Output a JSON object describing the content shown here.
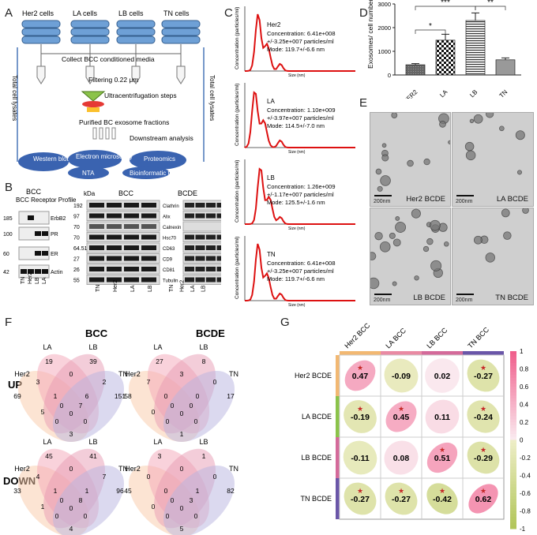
{
  "panels": {
    "A": "A",
    "B": "B",
    "C": "C",
    "D": "D",
    "E": "E",
    "F": "F",
    "G": "G"
  },
  "panelA": {
    "cells": [
      "Her2 cells",
      "LA cells",
      "LB cells",
      "TN cells"
    ],
    "collect": "Collect  BCC conditioned media",
    "filter": "Filtering 0.22 μm",
    "ultra": "Ultracentrifugation steps",
    "purified": "Purified BC exosome fractions",
    "downstream": "Downstream analysis",
    "lysates_left": "Total cell lysates",
    "lysates_right": "Total cell lysates",
    "methods": [
      "Western blot",
      "Electron microscopy",
      "NTA",
      "Proteomics",
      "Bioinformatic tools"
    ]
  },
  "panelB": {
    "receptor_title": "BCC Receptor Profile",
    "bcc": "BCC",
    "bcde": "BCDE",
    "kda": "kDa",
    "left_kda": [
      "185",
      "100",
      "60",
      "42"
    ],
    "left_labels": [
      "ErbB2",
      "PR",
      "ER",
      "Actin"
    ],
    "mid_kda": [
      "192",
      "97",
      "70",
      "70",
      "64.51",
      "27",
      "26",
      "55"
    ],
    "right_labels": [
      "Clathrin",
      "Alix",
      "Calnexin",
      "Hsc70",
      "CD63",
      "CD9",
      "CD81",
      "Tubulin"
    ],
    "lanes_left": [
      "TN",
      "Her2",
      "LB",
      "LA"
    ],
    "lanes_mid": [
      "TN",
      "Her2",
      "LA",
      "LB"
    ],
    "lanes_right": [
      "TN",
      "Her2",
      "LA",
      "LB"
    ]
  },
  "panelC": {
    "ylabel": "Concentration (particles/ml)",
    "xlabel": "Size (nm)",
    "samples": [
      {
        "name": "Her2",
        "conc": "Concentration: 6.41e+008",
        "pm": "+/-3.25e+007 particles/ml",
        "mode": "Mode: 119.7+/-6.6 nm"
      },
      {
        "name": "LA",
        "conc": "Concentration: 1.10e+009",
        "pm": "+/-3.97e+007 particles/ml",
        "mode": "Mode: 114.5+/-7.0 nm"
      },
      {
        "name": "LB",
        "conc": "Concentration: 1.26e+009",
        "pm": "+/-1.17e+007 particles/ml",
        "mode": "Mode: 125.5+/-1.6 nm"
      },
      {
        "name": "TN",
        "conc": "Concentration: 6.41e+008",
        "pm": "+/-3.25e+007 particles/ml",
        "mode": "Mode: 119.7+/-6.6 nm"
      }
    ]
  },
  "chart_data": {
    "type": "bar",
    "categories": [
      "HER2",
      "LA",
      "LB",
      "TN"
    ],
    "values": [
      430,
      1470,
      2300,
      640
    ],
    "errors": [
      50,
      250,
      320,
      80
    ],
    "ylabel": "Exosomes/ cell number",
    "ylim": [
      0,
      3000
    ],
    "yticks": [
      "0",
      "1000",
      "2000",
      "3000"
    ],
    "significance": [
      "*",
      "***",
      "**"
    ],
    "patterns": [
      "dark",
      "checker",
      "horizontal-lines",
      "light"
    ]
  },
  "panelE": {
    "tiles": [
      "Her2 BCDE",
      "LA BCDE",
      "LB BCDE",
      "TN BCDE"
    ],
    "scale": "200nm"
  },
  "panelF": {
    "bcc_title": "BCC",
    "bcde_title": "BCDE",
    "up": "UP",
    "down": "DOWN",
    "set_labels": [
      "Her2",
      "LA",
      "LB",
      "TN"
    ],
    "venns": [
      {
        "name": "bcc-up",
        "nums": {
          "her2": "69",
          "la": "19",
          "lb": "39",
          "tn": "151",
          "her2_la": "3",
          "lb_tn": "2",
          "her2_lb": "1",
          "la_tn": "6",
          "her2_la_lb": "0",
          "la_lb": "0",
          "la_lb_tn": "7",
          "her2_la_tn": "0",
          "her2_lb_tn": "0",
          "all": "0",
          "her2_tn": "3",
          "x5": "5"
        }
      },
      {
        "name": "bcde-up",
        "nums": {
          "her2": "58",
          "la": "27",
          "lb": "8",
          "tn": "17",
          "her2_la": "7",
          "lb_tn": "0",
          "her2_lb": "0",
          "la_tn": "0",
          "her2_la_lb": "0",
          "la_lb": "3",
          "la_lb_tn": "0",
          "her2_la_tn": "0",
          "her2_lb_tn": "0",
          "all": "0",
          "her2_tn": "1",
          "x5": "0"
        }
      },
      {
        "name": "bcc-down",
        "nums": {
          "her2": "33",
          "la": "45",
          "lb": "41",
          "tn": "96",
          "her2_la": "4",
          "lb_tn": "7",
          "her2_lb": "1",
          "la_tn": "1",
          "her2_la_lb": "0",
          "la_lb": "0",
          "la_lb_tn": "8",
          "her2_la_tn": "0",
          "her2_lb_tn": "0",
          "all": "0",
          "her2_tn": "4",
          "x5": "1"
        }
      },
      {
        "name": "bcde-down",
        "nums": {
          "her2": "45",
          "la": "3",
          "lb": "1",
          "tn": "82",
          "her2_la": "0",
          "lb_tn": "0",
          "her2_lb": "0",
          "la_tn": "1",
          "her2_la_lb": "0",
          "la_lb": "0",
          "la_lb_tn": "3",
          "her2_la_tn": "0",
          "her2_lb_tn": "0",
          "all": "0",
          "her2_tn": "5",
          "x5": "0"
        }
      }
    ]
  },
  "panelG": {
    "cols": [
      "Her2 BCC",
      "LA BCC",
      "LB BCC",
      "TN BCC"
    ],
    "rows": [
      "Her2 BCDE",
      "LA BCDE",
      "LB BCDE",
      "TN BCDE"
    ],
    "values": [
      [
        "0.47",
        "-0.09",
        "0.02",
        "-0.27"
      ],
      [
        "-0.19",
        "0.45",
        "0.11",
        "-0.24"
      ],
      [
        "-0.11",
        "0.08",
        "0.51",
        "-0.29"
      ],
      [
        "-0.27",
        "-0.27",
        "-0.42",
        "0.62"
      ]
    ],
    "numeric": [
      [
        0.47,
        -0.09,
        0.02,
        -0.27
      ],
      [
        -0.19,
        0.45,
        0.11,
        -0.24
      ],
      [
        -0.11,
        0.08,
        0.51,
        -0.29
      ],
      [
        -0.27,
        -0.27,
        -0.42,
        0.62
      ]
    ],
    "stars": [
      [
        1,
        0,
        0,
        1
      ],
      [
        1,
        1,
        0,
        1
      ],
      [
        0,
        0,
        1,
        1
      ],
      [
        1,
        1,
        1,
        1
      ]
    ],
    "star": "★",
    "colorbar": [
      "1",
      "0.8",
      "0.6",
      "0.4",
      "0.2",
      "0",
      "-0.2",
      "-0.4",
      "-0.6",
      "-0.8",
      "-1"
    ],
    "col_colors": [
      "#f2b872",
      "#e98aa3",
      "#d46a9a",
      "#6a56a8"
    ],
    "row_colors": [
      "#f2b872",
      "#8bc34a",
      "#d46a9a",
      "#6a56a8"
    ]
  }
}
